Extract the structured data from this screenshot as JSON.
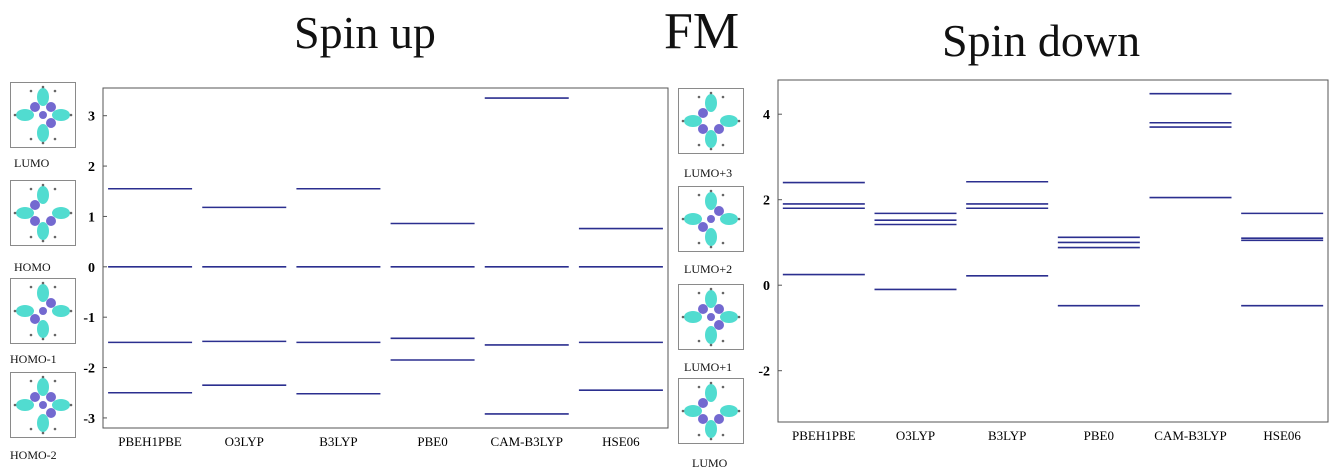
{
  "titles": {
    "left": "Spin up",
    "center": "FM",
    "right": "Spin down"
  },
  "colors": {
    "level_line": "#2b2f8f",
    "lobe_purple": "#5b4fc8",
    "lobe_cyan": "#33d6c8",
    "frame": "#8a8a8a"
  },
  "left_orbitals": [
    {
      "label": "LUMO",
      "icon": "orbital-lumo-icon"
    },
    {
      "label": "HOMO",
      "icon": "orbital-homo-icon"
    },
    {
      "label": "HOMO-1",
      "icon": "orbital-homo-1-icon"
    },
    {
      "label": "HOMO-2",
      "icon": "orbital-homo-2-icon"
    }
  ],
  "right_orbitals": [
    {
      "label": "LUMO+3",
      "icon": "orbital-lumo+3-icon"
    },
    {
      "label": "LUMO+2",
      "icon": "orbital-lumo+2-icon"
    },
    {
      "label": "LUMO+1",
      "icon": "orbital-lumo+1-icon"
    },
    {
      "label": "LUMO",
      "icon": "orbital-lumo-icon"
    }
  ],
  "chart_data": [
    {
      "type": "energy-level",
      "title": "Spin up",
      "categories": [
        "PBEH1PBE",
        "O3LYP",
        "B3LYP",
        "PBE0",
        "CAM-B3LYP",
        "HSE06"
      ],
      "ylim": [
        -3.2,
        3.55
      ],
      "yticks": [
        -3,
        -2,
        -1,
        0,
        1,
        2,
        3
      ],
      "ytick_labels": [
        "-3",
        "-2",
        "-1",
        "0",
        "1",
        "2",
        "3"
      ],
      "grid": false,
      "levels": [
        [
          -2.5,
          -1.5,
          0,
          1.55
        ],
        [
          -2.35,
          -1.48,
          0,
          1.18
        ],
        [
          -2.52,
          -1.5,
          0,
          1.55
        ],
        [
          -1.85,
          -1.42,
          0,
          0.86
        ],
        [
          -2.92,
          -1.55,
          0,
          3.35
        ],
        [
          -2.45,
          -1.5,
          0,
          0.76
        ]
      ]
    },
    {
      "type": "energy-level",
      "title": "Spin down",
      "categories": [
        "PBEH1PBE",
        "O3LYP",
        "B3LYP",
        "PBE0",
        "CAM-B3LYP",
        "HSE06"
      ],
      "ylim": [
        -3.2,
        4.8
      ],
      "yticks": [
        -2,
        0,
        2,
        4
      ],
      "ytick_labels": [
        "-2",
        "0",
        "2",
        "4"
      ],
      "grid": false,
      "levels": [
        [
          0.25,
          1.8,
          1.9,
          2.4
        ],
        [
          -0.1,
          1.42,
          1.52,
          1.68
        ],
        [
          0.22,
          1.8,
          1.9,
          2.42
        ],
        [
          -0.48,
          0.88,
          1.0,
          1.12
        ],
        [
          2.05,
          3.7,
          3.8,
          4.48
        ],
        [
          -0.48,
          1.05,
          1.1,
          1.68
        ]
      ]
    }
  ]
}
